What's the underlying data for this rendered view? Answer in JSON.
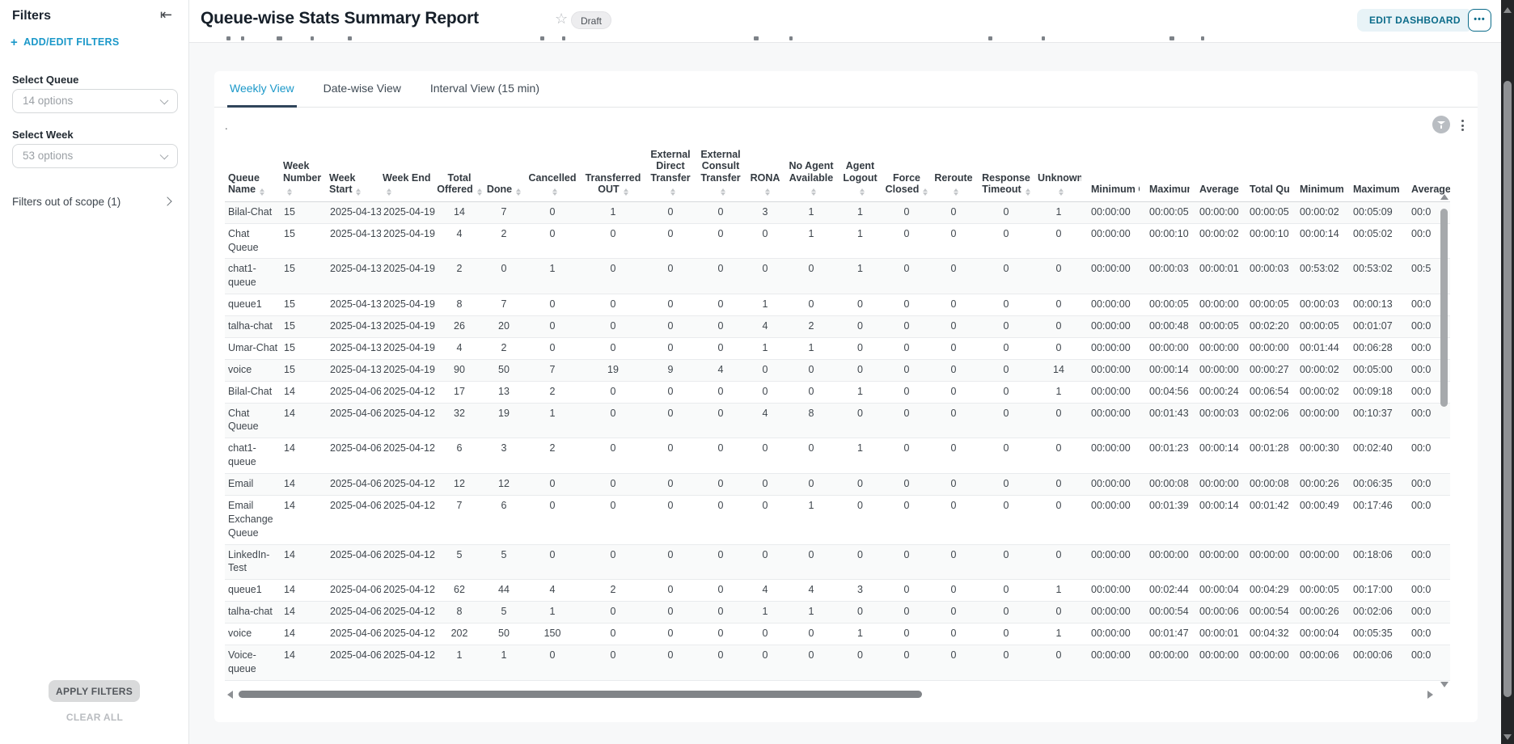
{
  "sidebar": {
    "title": "Filters",
    "add_edit_label": "ADD/EDIT FILTERS",
    "filters": [
      {
        "label": "Select Queue",
        "value": "14 options"
      },
      {
        "label": "Select Week",
        "value": "53 options"
      }
    ],
    "out_of_scope_label": "Filters out of scope (1)",
    "apply_label": "APPLY FILTERS",
    "clear_label": "CLEAR ALL"
  },
  "header": {
    "title": "Queue-wise Stats Summary Report",
    "status_badge": "Draft",
    "edit_button": "EDIT DASHBOARD",
    "more_button": "•••"
  },
  "tabs": [
    {
      "label": "Weekly View",
      "active": true
    },
    {
      "label": "Date-wise View",
      "active": false
    },
    {
      "label": "Interval View (15 min)",
      "active": false
    }
  ],
  "toolbar": {
    "dot": "."
  },
  "table": {
    "columns": [
      "Queue Name",
      "Week Number",
      "Week Start",
      "Week End",
      "Total Offered",
      "Done",
      "Cancelled",
      "Transferred OUT",
      "External Direct Transfer",
      "External Consult Transfer",
      "RONA",
      "No Agent Available",
      "Agent Logout",
      "Force Closed",
      "Reroute",
      "Response Timeout",
      "Unknown",
      "Minimum Queue Duration",
      "Maximum Queue Duration",
      "Average Queue Duration",
      "Total Queue Duration",
      "Minimum Handled Duration",
      "Maximum Handled Duration",
      "Average Handled Duration"
    ],
    "rows": [
      [
        "Bilal-Chat",
        "15",
        "2025-04-13",
        "2025-04-19",
        "14",
        "7",
        "0",
        "1",
        "0",
        "0",
        "3",
        "1",
        "1",
        "0",
        "0",
        "0",
        "1",
        "00:00:00",
        "00:00:05",
        "00:00:00",
        "00:00:05",
        "00:00:02",
        "00:05:09",
        "00:0"
      ],
      [
        "Chat Queue",
        "15",
        "2025-04-13",
        "2025-04-19",
        "4",
        "2",
        "0",
        "0",
        "0",
        "0",
        "0",
        "1",
        "1",
        "0",
        "0",
        "0",
        "0",
        "00:00:00",
        "00:00:10",
        "00:00:02",
        "00:00:10",
        "00:00:14",
        "00:05:02",
        "00:0"
      ],
      [
        "chat1-queue",
        "15",
        "2025-04-13",
        "2025-04-19",
        "2",
        "0",
        "1",
        "0",
        "0",
        "0",
        "0",
        "0",
        "1",
        "0",
        "0",
        "0",
        "0",
        "00:00:00",
        "00:00:03",
        "00:00:01",
        "00:00:03",
        "00:53:02",
        "00:53:02",
        "00:5"
      ],
      [
        "queue1",
        "15",
        "2025-04-13",
        "2025-04-19",
        "8",
        "7",
        "0",
        "0",
        "0",
        "0",
        "1",
        "0",
        "0",
        "0",
        "0",
        "0",
        "0",
        "00:00:00",
        "00:00:05",
        "00:00:00",
        "00:00:05",
        "00:00:03",
        "00:00:13",
        "00:0"
      ],
      [
        "talha-chat",
        "15",
        "2025-04-13",
        "2025-04-19",
        "26",
        "20",
        "0",
        "0",
        "0",
        "0",
        "4",
        "2",
        "0",
        "0",
        "0",
        "0",
        "0",
        "00:00:00",
        "00:00:48",
        "00:00:05",
        "00:02:20",
        "00:00:05",
        "00:01:07",
        "00:0"
      ],
      [
        "Umar-Chat",
        "15",
        "2025-04-13",
        "2025-04-19",
        "4",
        "2",
        "0",
        "0",
        "0",
        "0",
        "1",
        "1",
        "0",
        "0",
        "0",
        "0",
        "0",
        "00:00:00",
        "00:00:00",
        "00:00:00",
        "00:00:00",
        "00:01:44",
        "00:06:28",
        "00:0"
      ],
      [
        "voice",
        "15",
        "2025-04-13",
        "2025-04-19",
        "90",
        "50",
        "7",
        "19",
        "9",
        "4",
        "0",
        "0",
        "0",
        "0",
        "0",
        "0",
        "14",
        "00:00:00",
        "00:00:14",
        "00:00:00",
        "00:00:27",
        "00:00:02",
        "00:05:00",
        "00:0"
      ],
      [
        "Bilal-Chat",
        "14",
        "2025-04-06",
        "2025-04-12",
        "17",
        "13",
        "2",
        "0",
        "0",
        "0",
        "0",
        "0",
        "1",
        "0",
        "0",
        "0",
        "1",
        "00:00:00",
        "00:04:56",
        "00:00:24",
        "00:06:54",
        "00:00:02",
        "00:09:18",
        "00:0"
      ],
      [
        "Chat Queue",
        "14",
        "2025-04-06",
        "2025-04-12",
        "32",
        "19",
        "1",
        "0",
        "0",
        "0",
        "4",
        "8",
        "0",
        "0",
        "0",
        "0",
        "0",
        "00:00:00",
        "00:01:43",
        "00:00:03",
        "00:02:06",
        "00:00:00",
        "00:10:37",
        "00:0"
      ],
      [
        "chat1-queue",
        "14",
        "2025-04-06",
        "2025-04-12",
        "6",
        "3",
        "2",
        "0",
        "0",
        "0",
        "0",
        "0",
        "1",
        "0",
        "0",
        "0",
        "0",
        "00:00:00",
        "00:01:23",
        "00:00:14",
        "00:01:28",
        "00:00:30",
        "00:02:40",
        "00:0"
      ],
      [
        "Email",
        "14",
        "2025-04-06",
        "2025-04-12",
        "12",
        "12",
        "0",
        "0",
        "0",
        "0",
        "0",
        "0",
        "0",
        "0",
        "0",
        "0",
        "0",
        "00:00:00",
        "00:00:08",
        "00:00:00",
        "00:00:08",
        "00:00:26",
        "00:06:35",
        "00:0"
      ],
      [
        "Email Exchange Queue",
        "14",
        "2025-04-06",
        "2025-04-12",
        "7",
        "6",
        "0",
        "0",
        "0",
        "0",
        "0",
        "1",
        "0",
        "0",
        "0",
        "0",
        "0",
        "00:00:00",
        "00:01:39",
        "00:00:14",
        "00:01:42",
        "00:00:49",
        "00:17:46",
        "00:0"
      ],
      [
        "LinkedIn-Test",
        "14",
        "2025-04-06",
        "2025-04-12",
        "5",
        "5",
        "0",
        "0",
        "0",
        "0",
        "0",
        "0",
        "0",
        "0",
        "0",
        "0",
        "0",
        "00:00:00",
        "00:00:00",
        "00:00:00",
        "00:00:00",
        "00:00:00",
        "00:18:06",
        "00:0"
      ],
      [
        "queue1",
        "14",
        "2025-04-06",
        "2025-04-12",
        "62",
        "44",
        "4",
        "2",
        "0",
        "0",
        "4",
        "4",
        "3",
        "0",
        "0",
        "0",
        "1",
        "00:00:00",
        "00:02:44",
        "00:00:04",
        "00:04:29",
        "00:00:05",
        "00:17:00",
        "00:0"
      ],
      [
        "talha-chat",
        "14",
        "2025-04-06",
        "2025-04-12",
        "8",
        "5",
        "1",
        "0",
        "0",
        "0",
        "1",
        "1",
        "0",
        "0",
        "0",
        "0",
        "0",
        "00:00:00",
        "00:00:54",
        "00:00:06",
        "00:00:54",
        "00:00:26",
        "00:02:06",
        "00:0"
      ],
      [
        "voice",
        "14",
        "2025-04-06",
        "2025-04-12",
        "202",
        "50",
        "150",
        "0",
        "0",
        "0",
        "0",
        "0",
        "1",
        "0",
        "0",
        "0",
        "1",
        "00:00:00",
        "00:01:47",
        "00:00:01",
        "00:04:32",
        "00:00:04",
        "00:05:35",
        "00:0"
      ],
      [
        "Voice-queue",
        "14",
        "2025-04-06",
        "2025-04-12",
        "1",
        "1",
        "0",
        "0",
        "0",
        "0",
        "0",
        "0",
        "0",
        "0",
        "0",
        "0",
        "0",
        "00:00:00",
        "00:00:00",
        "00:00:00",
        "00:00:00",
        "00:00:06",
        "00:00:06",
        "00:0"
      ]
    ]
  },
  "colors": {
    "accent_blue": "#1b98c9",
    "teal": "#0c6c8a",
    "edit_button_bg": "#e8f3f7",
    "tab_underline": "#30455b",
    "page_bg": "#f7f8f9",
    "badge_bg": "#ededef",
    "page_scrollbar_track": "#242628"
  }
}
